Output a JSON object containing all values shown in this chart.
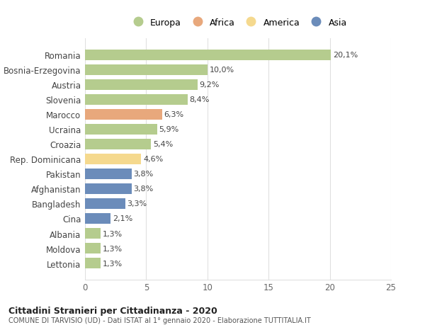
{
  "countries": [
    "Romania",
    "Bosnia-Erzegovina",
    "Austria",
    "Slovenia",
    "Marocco",
    "Ucraina",
    "Croazia",
    "Rep. Dominicana",
    "Pakistan",
    "Afghanistan",
    "Bangladesh",
    "Cina",
    "Albania",
    "Moldova",
    "Lettonia"
  ],
  "values": [
    20.1,
    10.0,
    9.2,
    8.4,
    6.3,
    5.9,
    5.4,
    4.6,
    3.8,
    3.8,
    3.3,
    2.1,
    1.3,
    1.3,
    1.3
  ],
  "continents": [
    "Europa",
    "Europa",
    "Europa",
    "Europa",
    "Africa",
    "Europa",
    "Europa",
    "America",
    "Asia",
    "Asia",
    "Asia",
    "Asia",
    "Europa",
    "Europa",
    "Europa"
  ],
  "colors": {
    "Europa": "#b5cc8e",
    "Africa": "#e8a87c",
    "America": "#f5d98e",
    "Asia": "#6b8cba"
  },
  "legend_order": [
    "Europa",
    "Africa",
    "America",
    "Asia"
  ],
  "xlim": [
    0,
    25
  ],
  "xticks": [
    0,
    5,
    10,
    15,
    20,
    25
  ],
  "title": "Cittadini Stranieri per Cittadinanza - 2020",
  "subtitle": "COMUNE DI TARVISIO (UD) - Dati ISTAT al 1° gennaio 2020 - Elaborazione TUTTITALIA.IT",
  "background_color": "#ffffff",
  "bar_height": 0.72,
  "grid_color": "#e0e0e0",
  "label_fontsize": 8.5,
  "tick_fontsize": 8.5,
  "value_label_fontsize": 8
}
